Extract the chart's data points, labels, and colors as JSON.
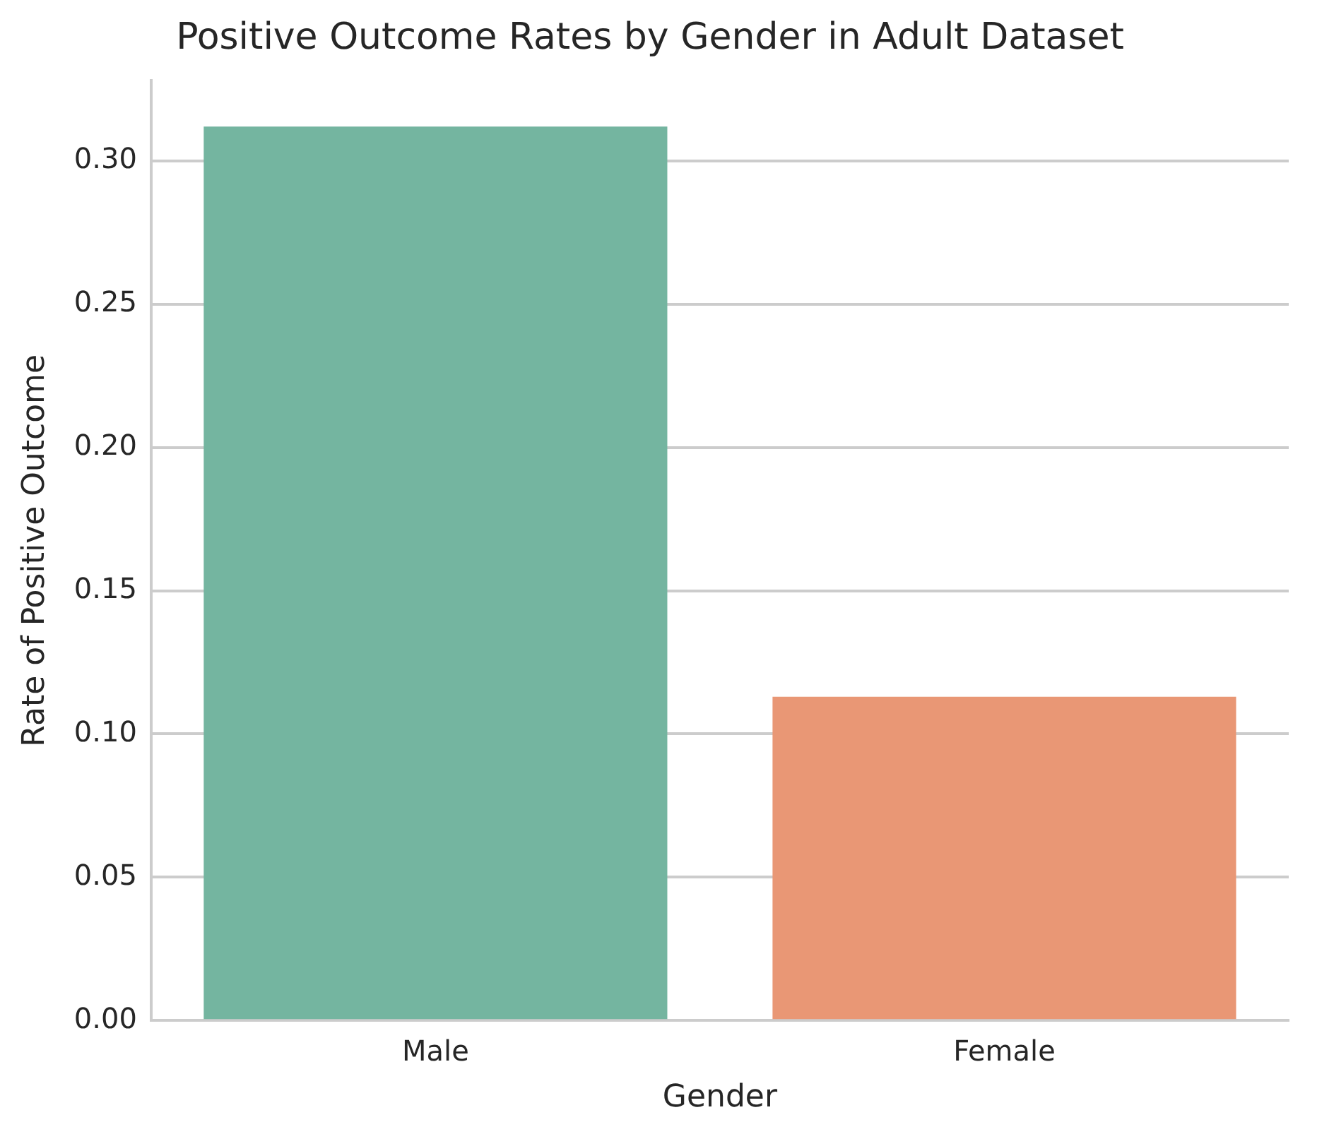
{
  "chart_data": {
    "type": "bar",
    "title": "Positive Outcome Rates by Gender in Adult Dataset",
    "xlabel": "Gender",
    "ylabel": "Rate of Positive Outcome",
    "categories": [
      "Male",
      "Female"
    ],
    "values": [
      0.312,
      0.113
    ],
    "colors": [
      "#74b5a0",
      "#e99775"
    ],
    "ylim": [
      0,
      0.328
    ],
    "yticks": [
      {
        "value": 0,
        "label": "0.00"
      },
      0.05,
      {
        "value": 0.1,
        "label": "0.10"
      },
      0.15,
      {
        "value": 0.2,
        "label": "0.20"
      },
      0.25,
      {
        "value": 0.3,
        "label": "0.30"
      }
    ],
    "grid": "y",
    "legend": false
  }
}
